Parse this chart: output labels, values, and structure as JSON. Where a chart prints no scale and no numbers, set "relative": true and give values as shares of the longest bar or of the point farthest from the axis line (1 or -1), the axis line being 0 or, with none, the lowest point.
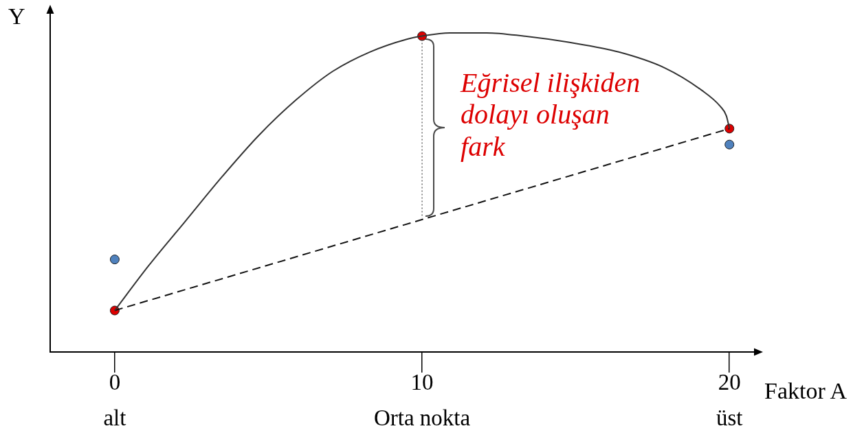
{
  "chart_data": {
    "type": "line",
    "xlabel": "Faktor A",
    "ylabel": "Y",
    "relative": true,
    "xlim": [
      -2.1,
      20.8
    ],
    "xticks": [
      {
        "value": 0,
        "label": "0\nalt"
      },
      {
        "value": 10,
        "label": "10\nOrta nokta"
      },
      {
        "value": 20,
        "label": "20\nüst"
      }
    ],
    "series": [
      {
        "color": "#333333",
        "marker": "none",
        "line_style": "solid",
        "x": [
          0,
          1.1,
          2.3,
          3.5,
          4.7,
          5.9,
          7.1,
          8.3,
          9.5,
          10,
          10.9,
          12.1,
          13.3,
          14.8,
          16.4,
          17.9,
          19.1,
          19.7,
          19.9,
          20
        ],
        "values": [
          0.13,
          0.27,
          0.41,
          0.55,
          0.68,
          0.79,
          0.88,
          0.94,
          0.98,
          0.99,
          1,
          1,
          0.99,
          0.97,
          0.94,
          0.89,
          0.82,
          0.77,
          0.74,
          0.7
        ]
      },
      {
        "color": "#111111",
        "marker": "none",
        "line_style": "dashed",
        "x": [
          0,
          20
        ],
        "values": [
          0.13,
          0.7
        ]
      },
      {
        "color": "#555555",
        "marker": "none",
        "line_style": "dotted",
        "x": [
          10,
          10
        ],
        "values": [
          0.99,
          0.42
        ]
      },
      {
        "type": "scatter",
        "color": "#dd0000",
        "marker": "circle",
        "x": [
          0,
          10,
          20
        ],
        "values": [
          0.13,
          0.99,
          0.7
        ]
      },
      {
        "type": "scatter",
        "color": "#4f81bd",
        "marker": "circle",
        "x": [
          0,
          20
        ],
        "values": [
          0.29,
          0.65
        ]
      }
    ],
    "annotations": [
      "Eğrisel ilişkiden dolayı oluşan fark"
    ],
    "legend": false,
    "grid": false,
    "tick_labels": "x"
  }
}
